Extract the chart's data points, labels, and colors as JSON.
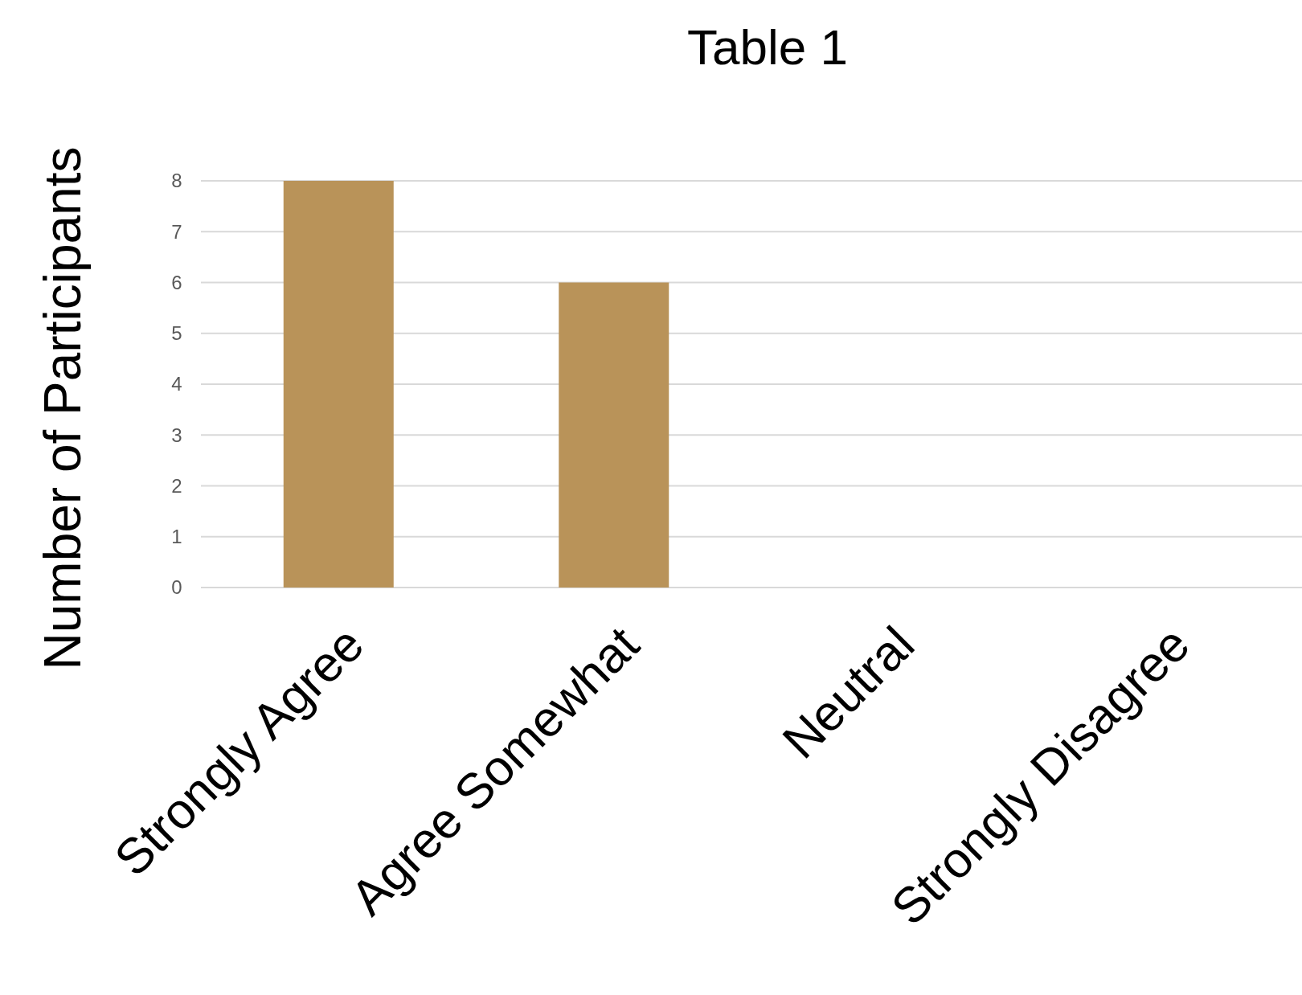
{
  "chart_data": {
    "type": "bar",
    "title": "Table 1",
    "ylabel": "Number of Participants",
    "categories": [
      "Strongly Agree",
      "Agree Somewhat",
      "Neutral",
      "Strongly Disagree"
    ],
    "values": [
      8,
      6,
      0,
      0
    ],
    "color": "#b99359",
    "ylim": [
      0,
      8
    ],
    "yticks": [
      0,
      1,
      2,
      3,
      4,
      5,
      6,
      7,
      8
    ],
    "grid": "y"
  }
}
